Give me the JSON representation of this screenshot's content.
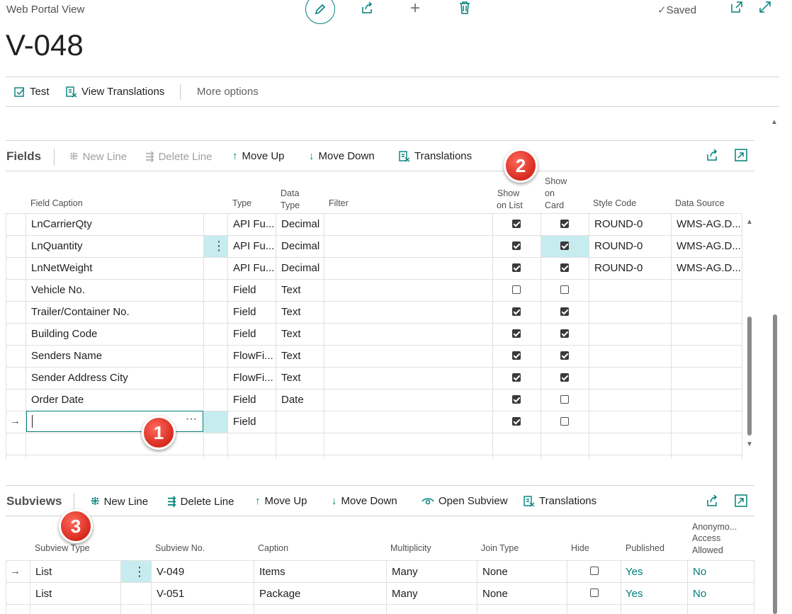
{
  "header": {
    "portal_label": "Web Portal View",
    "title": "V-048",
    "saved_label": "Saved"
  },
  "actionbar": {
    "test_label": "Test",
    "view_translations_label": "View Translations",
    "more_options_label": "More options"
  },
  "fields": {
    "title": "Fields",
    "toolbar": {
      "new_line": "New Line",
      "delete_line": "Delete Line",
      "move_up": "Move Up",
      "move_down": "Move Down",
      "translations": "Translations"
    },
    "columns": {
      "caption": "Field Caption",
      "type": "Type",
      "data_type_1": "Data",
      "data_type_2": "Type",
      "filter": "Filter",
      "show_list_1": "Show",
      "show_list_2": "on List",
      "show_card_1": "Show",
      "show_card_2": "on",
      "show_card_3": "Card",
      "style_code": "Style Code",
      "data_source": "Data Source"
    },
    "rows": [
      {
        "caption": "LnCarrierQty",
        "type": "API Fu...",
        "data_type": "Decimal",
        "show_list": true,
        "show_card": true,
        "style": "ROUND-0",
        "source": "WMS-AG.D..."
      },
      {
        "caption": "LnQuantity",
        "type": "API Fu...",
        "data_type": "Decimal",
        "show_list": true,
        "show_card": true,
        "style": "ROUND-0",
        "source": "WMS-AG.D..."
      },
      {
        "caption": "LnNetWeight",
        "type": "API Fu...",
        "data_type": "Decimal",
        "show_list": true,
        "show_card": true,
        "style": "ROUND-0",
        "source": "WMS-AG.D..."
      },
      {
        "caption": "Vehicle No.",
        "type": "Field",
        "data_type": "Text",
        "show_list": false,
        "show_card": false,
        "style": "",
        "source": ""
      },
      {
        "caption": "Trailer/Container No.",
        "type": "Field",
        "data_type": "Text",
        "show_list": true,
        "show_card": true,
        "style": "",
        "source": ""
      },
      {
        "caption": "Building Code",
        "type": "Field",
        "data_type": "Text",
        "show_list": true,
        "show_card": true,
        "style": "",
        "source": ""
      },
      {
        "caption": "Senders Name",
        "type": "FlowFi...",
        "data_type": "Text",
        "show_list": true,
        "show_card": true,
        "style": "",
        "source": ""
      },
      {
        "caption": "Sender Address City",
        "type": "FlowFi...",
        "data_type": "Text",
        "show_list": true,
        "show_card": true,
        "style": "",
        "source": ""
      },
      {
        "caption": "Order Date",
        "type": "Field",
        "data_type": "Date",
        "show_list": true,
        "show_card": false,
        "style": "",
        "source": ""
      },
      {
        "caption": "",
        "type": "Field",
        "data_type": "",
        "show_list": true,
        "show_card": false,
        "style": "",
        "source": ""
      }
    ]
  },
  "subviews": {
    "title": "Subviews",
    "toolbar": {
      "new_line": "New Line",
      "delete_line": "Delete Line",
      "move_up": "Move Up",
      "move_down": "Move Down",
      "open_subview": "Open Subview",
      "translations": "Translations"
    },
    "columns": {
      "subview_type": "Subview Type",
      "subview_no": "Subview No.",
      "caption": "Caption",
      "multiplicity": "Multiplicity",
      "join_type": "Join Type",
      "hide": "Hide",
      "published": "Published",
      "anon_1": "Anonymo...",
      "anon_2": "Access",
      "anon_3": "Allowed"
    },
    "rows": [
      {
        "type": "List",
        "no": "V-049",
        "caption": "Items",
        "multiplicity": "Many",
        "join": "None",
        "hide": false,
        "published": "Yes",
        "anon": "No"
      },
      {
        "type": "List",
        "no": "V-051",
        "caption": "Package",
        "multiplicity": "Many",
        "join": "None",
        "hide": false,
        "published": "Yes",
        "anon": "No"
      }
    ]
  },
  "callouts": [
    "1",
    "2",
    "3"
  ],
  "colors": {
    "accent": "#00807a",
    "selection": "#c7ecef",
    "callout": "#d62a1e"
  }
}
